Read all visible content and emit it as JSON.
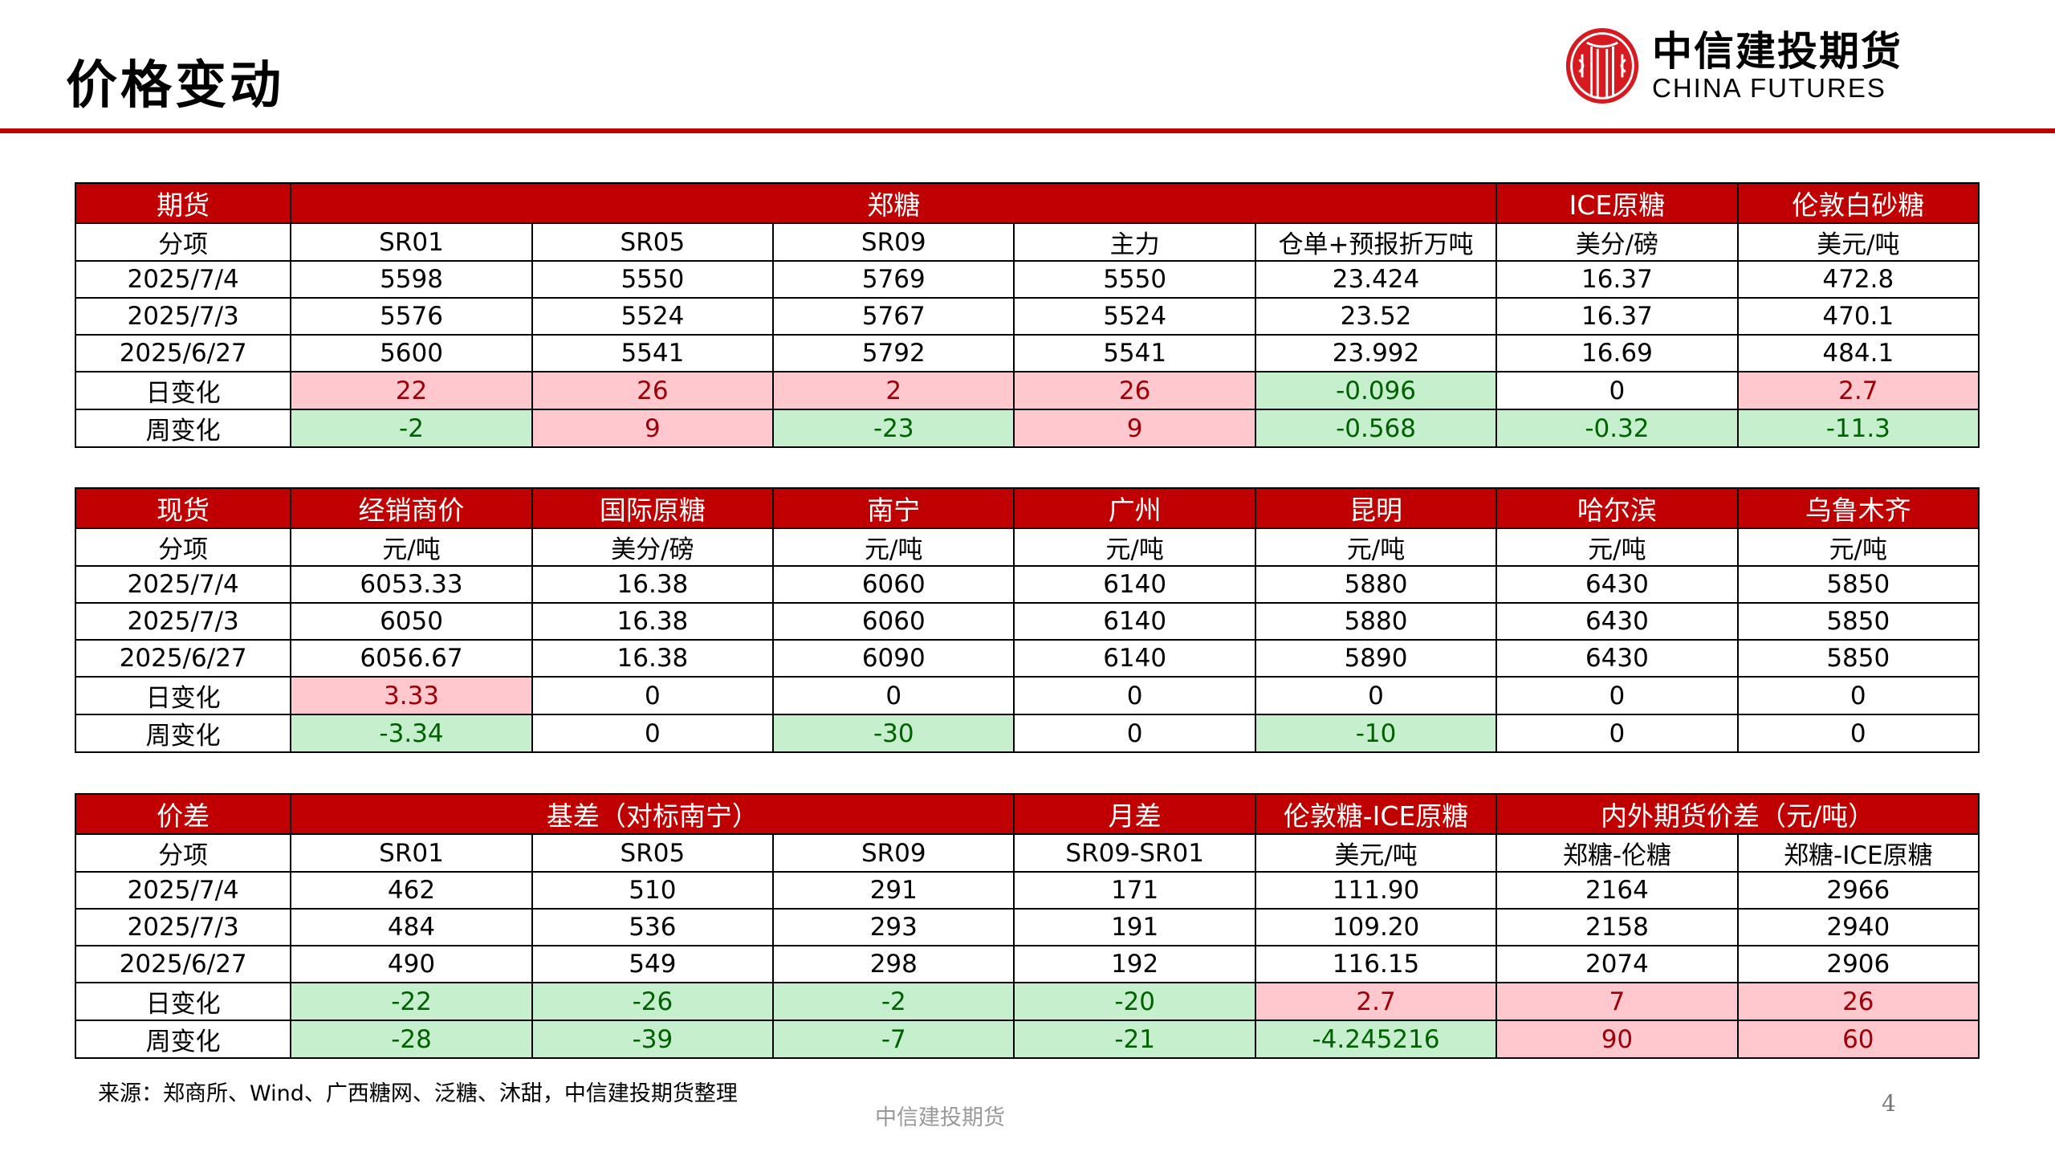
{
  "title": "价格变动",
  "logo": {
    "cn": "中信建投期货",
    "en": "CHINA FUTURES"
  },
  "colors": {
    "header": "#C00000",
    "pos_bg": "#FFC7CE",
    "pos_fg": "#9C0006",
    "neg_bg": "#C6EFCE",
    "neg_fg": "#006100"
  },
  "tables": [
    {
      "header": [
        {
          "text": "期货",
          "span": 1
        },
        {
          "text": "郑糖",
          "span": 5
        },
        {
          "text": "ICE原糖",
          "span": 1
        },
        {
          "text": "伦敦白砂糖",
          "span": 1
        }
      ],
      "rows": [
        {
          "cells": [
            "分项",
            "SR01",
            "SR05",
            "SR09",
            "主力",
            "仓单+预报折万吨",
            "美分/磅",
            "美元/吨"
          ],
          "tones": [
            "",
            "",
            "",
            "",
            "",
            "",
            "",
            ""
          ]
        },
        {
          "cells": [
            "2025/7/4",
            "5598",
            "5550",
            "5769",
            "5550",
            "23.424",
            "16.37",
            "472.8"
          ],
          "tones": [
            "",
            "",
            "",
            "",
            "",
            "",
            "",
            ""
          ]
        },
        {
          "cells": [
            "2025/7/3",
            "5576",
            "5524",
            "5767",
            "5524",
            "23.52",
            "16.37",
            "470.1"
          ],
          "tones": [
            "",
            "",
            "",
            "",
            "",
            "",
            "",
            ""
          ]
        },
        {
          "cells": [
            "2025/6/27",
            "5600",
            "5541",
            "5792",
            "5541",
            "23.992",
            "16.69",
            "484.1"
          ],
          "tones": [
            "",
            "",
            "",
            "",
            "",
            "",
            "",
            ""
          ]
        },
        {
          "cells": [
            "日变化",
            "22",
            "26",
            "2",
            "26",
            "-0.096",
            "0",
            "2.7"
          ],
          "tones": [
            "",
            "pos",
            "pos",
            "pos",
            "pos",
            "neg",
            "",
            "pos"
          ]
        },
        {
          "cells": [
            "周变化",
            "-2",
            "9",
            "-23",
            "9",
            "-0.568",
            "-0.32",
            "-11.3"
          ],
          "tones": [
            "",
            "neg",
            "pos",
            "neg",
            "pos",
            "neg",
            "neg",
            "neg"
          ]
        }
      ]
    },
    {
      "header": [
        {
          "text": "现货",
          "span": 1
        },
        {
          "text": "经销商价",
          "span": 1
        },
        {
          "text": "国际原糖",
          "span": 1
        },
        {
          "text": "南宁",
          "span": 1
        },
        {
          "text": "广州",
          "span": 1
        },
        {
          "text": "昆明",
          "span": 1
        },
        {
          "text": "哈尔滨",
          "span": 1
        },
        {
          "text": "乌鲁木齐",
          "span": 1
        }
      ],
      "rows": [
        {
          "cells": [
            "分项",
            "元/吨",
            "美分/磅",
            "元/吨",
            "元/吨",
            "元/吨",
            "元/吨",
            "元/吨"
          ],
          "tones": [
            "",
            "",
            "",
            "",
            "",
            "",
            "",
            ""
          ]
        },
        {
          "cells": [
            "2025/7/4",
            "6053.33",
            "16.38",
            "6060",
            "6140",
            "5880",
            "6430",
            "5850"
          ],
          "tones": [
            "",
            "",
            "",
            "",
            "",
            "",
            "",
            ""
          ]
        },
        {
          "cells": [
            "2025/7/3",
            "6050",
            "16.38",
            "6060",
            "6140",
            "5880",
            "6430",
            "5850"
          ],
          "tones": [
            "",
            "",
            "",
            "",
            "",
            "",
            "",
            ""
          ]
        },
        {
          "cells": [
            "2025/6/27",
            "6056.67",
            "16.38",
            "6090",
            "6140",
            "5890",
            "6430",
            "5850"
          ],
          "tones": [
            "",
            "",
            "",
            "",
            "",
            "",
            "",
            ""
          ]
        },
        {
          "cells": [
            "日变化",
            "3.33",
            "0",
            "0",
            "0",
            "0",
            "0",
            "0"
          ],
          "tones": [
            "",
            "pos",
            "",
            "",
            "",
            "",
            "",
            ""
          ]
        },
        {
          "cells": [
            "周变化",
            "-3.34",
            "0",
            "-30",
            "0",
            "-10",
            "0",
            "0"
          ],
          "tones": [
            "",
            "neg",
            "",
            "neg",
            "",
            "neg",
            "",
            ""
          ]
        }
      ]
    },
    {
      "header": [
        {
          "text": "价差",
          "span": 1
        },
        {
          "text": "基差（对标南宁）",
          "span": 3
        },
        {
          "text": "月差",
          "span": 1
        },
        {
          "text": "伦敦糖-ICE原糖",
          "span": 1,
          "small": true
        },
        {
          "text": "内外期货价差（元/吨）",
          "span": 2
        }
      ],
      "rows": [
        {
          "cells": [
            "分项",
            "SR01",
            "SR05",
            "SR09",
            "SR09-SR01",
            "美元/吨",
            "郑糖-伦糖",
            "郑糖-ICE原糖"
          ],
          "tones": [
            "",
            "",
            "",
            "",
            "",
            "",
            "",
            ""
          ]
        },
        {
          "cells": [
            "2025/7/4",
            "462",
            "510",
            "291",
            "171",
            "111.90",
            "2164",
            "2966"
          ],
          "tones": [
            "",
            "",
            "",
            "",
            "",
            "",
            "",
            ""
          ]
        },
        {
          "cells": [
            "2025/7/3",
            "484",
            "536",
            "293",
            "191",
            "109.20",
            "2158",
            "2940"
          ],
          "tones": [
            "",
            "",
            "",
            "",
            "",
            "",
            "",
            ""
          ]
        },
        {
          "cells": [
            "2025/6/27",
            "490",
            "549",
            "298",
            "192",
            "116.15",
            "2074",
            "2906"
          ],
          "tones": [
            "",
            "",
            "",
            "",
            "",
            "",
            "",
            ""
          ]
        },
        {
          "cells": [
            "日变化",
            "-22",
            "-26",
            "-2",
            "-20",
            "2.7",
            "7",
            "26"
          ],
          "tones": [
            "",
            "neg",
            "neg",
            "neg",
            "neg",
            "pos",
            "pos",
            "pos"
          ]
        },
        {
          "cells": [
            "周变化",
            "-28",
            "-39",
            "-7",
            "-21",
            "-4.245216",
            "90",
            "60"
          ],
          "tones": [
            "",
            "neg",
            "neg",
            "neg",
            "neg",
            "neg",
            "pos",
            "pos"
          ]
        }
      ]
    }
  ],
  "source": "来源：郑商所、Wind、广西糖网、泛糖、沐甜，中信建投期货整理",
  "footer": "中信建投期货",
  "page_number": "4"
}
